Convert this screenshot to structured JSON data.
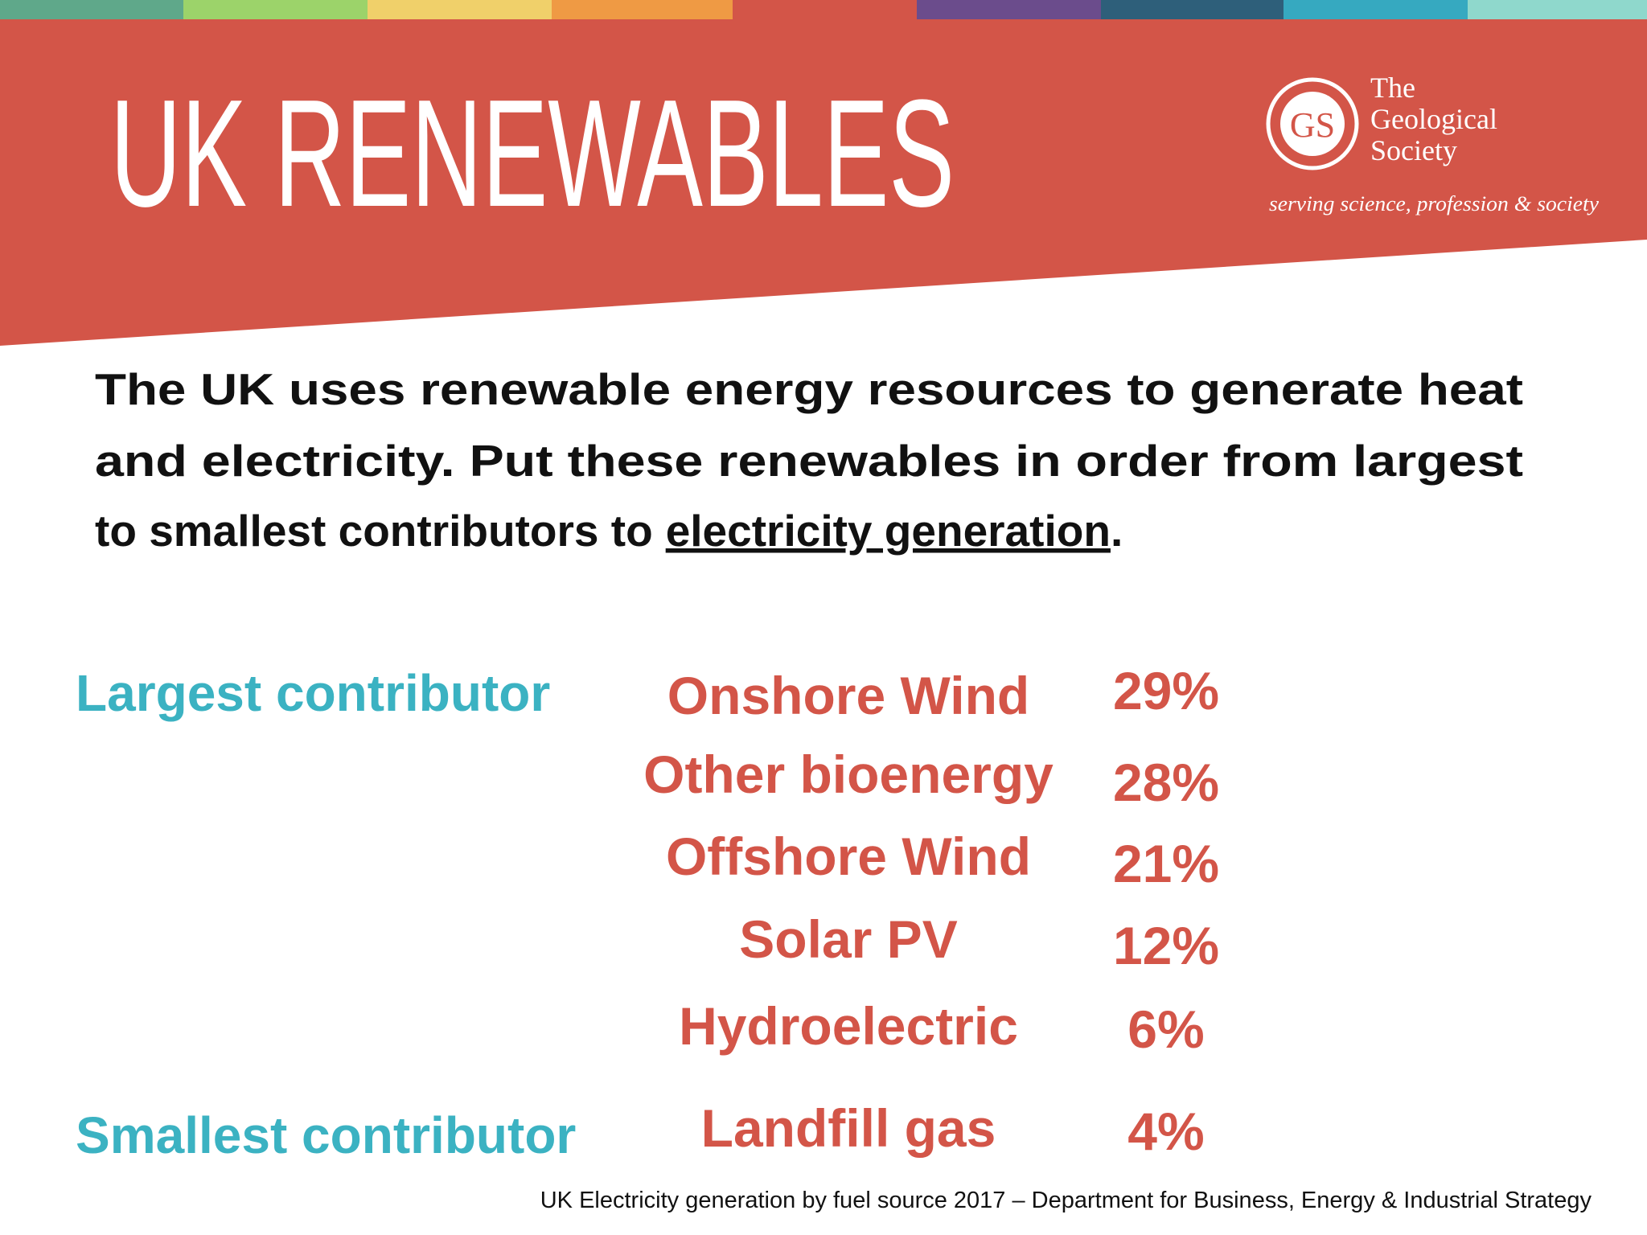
{
  "header": {
    "title": "UK RENEWABLES",
    "logo": {
      "lines": [
        "The",
        "Geological",
        "Society"
      ],
      "tagline": "serving science, profession & society"
    }
  },
  "question": {
    "lines": [
      "The UK uses renewable energy resources to generate heat",
      "and electricity. Put these renewables in order from largest",
      "to smallest contributors to"
    ],
    "underlined": "electricity generation",
    "end": "."
  },
  "labels": {
    "largest": "Largest contributor",
    "smallest": "Smallest contributor"
  },
  "items": [
    {
      "name": "Onshore Wind",
      "share": "29%"
    },
    {
      "name": "Other bioenergy",
      "share": "28%"
    },
    {
      "name": "Offshore Wind",
      "share": "21%"
    },
    {
      "name": "Solar PV",
      "share": "12%"
    },
    {
      "name": "Hydroelectric",
      "share": "6%"
    },
    {
      "name": "Landfill gas",
      "share": "4%"
    }
  ],
  "source": "UK Electricity generation by fuel source 2017 – Department for Business, Energy & Industrial Strategy"
}
